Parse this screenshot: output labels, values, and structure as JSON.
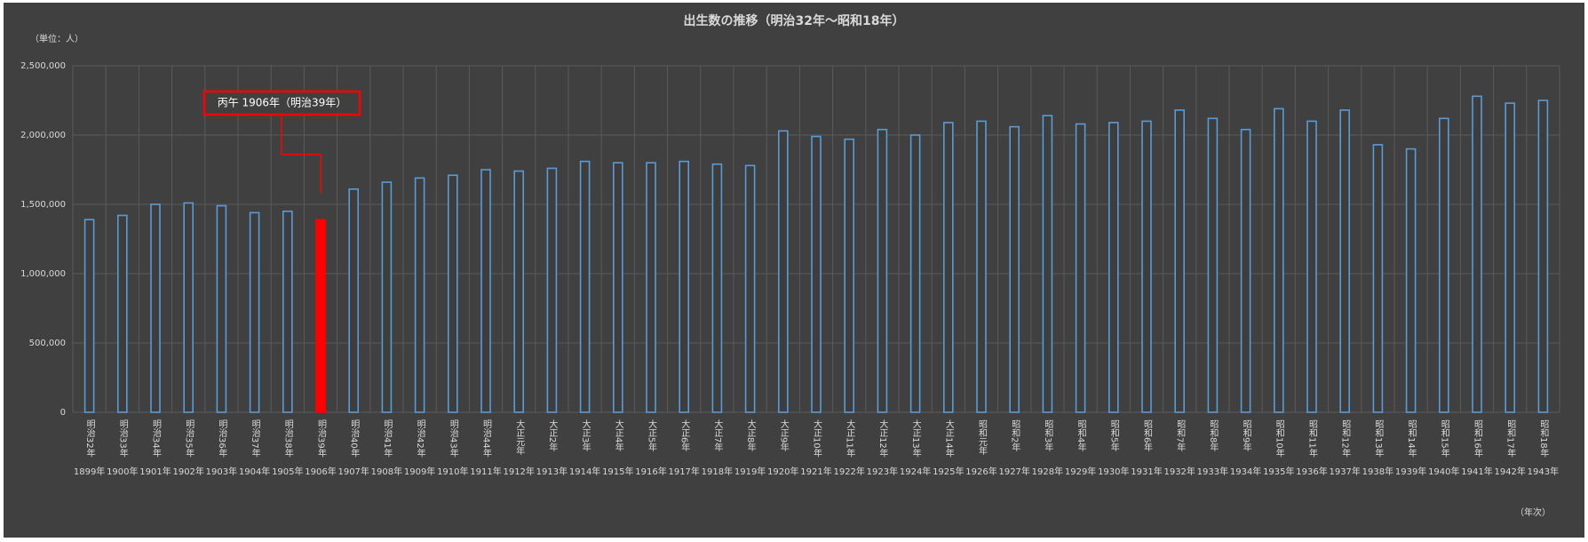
{
  "chart_data": {
    "type": "bar",
    "title": "出生数の推移（明治32年～昭和18年）",
    "y_unit_label": "（単位：人）",
    "x_unit_label": "（年次）",
    "categories": [
      "1899年",
      "1900年",
      "1901年",
      "1902年",
      "1903年",
      "1904年",
      "1905年",
      "1906年",
      "1907年",
      "1908年",
      "1909年",
      "1910年",
      "1911年",
      "1912年",
      "1913年",
      "1914年",
      "1915年",
      "1916年",
      "1917年",
      "1918年",
      "1919年",
      "1920年",
      "1921年",
      "1922年",
      "1923年",
      "1924年",
      "1925年",
      "1926年",
      "1927年",
      "1928年",
      "1929年",
      "1930年",
      "1931年",
      "1932年",
      "1933年",
      "1934年",
      "1935年",
      "1936年",
      "1937年",
      "1938年",
      "1939年",
      "1940年",
      "1941年",
      "1942年",
      "1943年"
    ],
    "era_labels": [
      "明治32年",
      "明治33年",
      "明治34年",
      "明治35年",
      "明治36年",
      "明治37年",
      "明治38年",
      "明治39年",
      "明治40年",
      "明治41年",
      "明治42年",
      "明治43年",
      "明治44年",
      "大正元年",
      "大正2年",
      "大正3年",
      "大正4年",
      "大正5年",
      "大正6年",
      "大正7年",
      "大正8年",
      "大正9年",
      "大正10年",
      "大正11年",
      "大正12年",
      "大正13年",
      "大正14年",
      "昭和元年",
      "昭和2年",
      "昭和3年",
      "昭和4年",
      "昭和5年",
      "昭和6年",
      "昭和7年",
      "昭和8年",
      "昭和9年",
      "昭和10年",
      "昭和11年",
      "昭和12年",
      "昭和13年",
      "昭和14年",
      "昭和15年",
      "昭和16年",
      "昭和17年",
      "昭和18年"
    ],
    "values": [
      1390000,
      1420000,
      1500000,
      1510000,
      1490000,
      1440000,
      1450000,
      1390000,
      1610000,
      1660000,
      1690000,
      1710000,
      1750000,
      1740000,
      1760000,
      1810000,
      1800000,
      1800000,
      1810000,
      1790000,
      1780000,
      2030000,
      1990000,
      1970000,
      2040000,
      2000000,
      2090000,
      2100000,
      2060000,
      2140000,
      2080000,
      2090000,
      2100000,
      2180000,
      2120000,
      2040000,
      2190000,
      2100000,
      2180000,
      1930000,
      1900000,
      2120000,
      2280000,
      2230000,
      2250000
    ],
    "color": "#5b9bd5",
    "highlight": {
      "index": 7,
      "color": "#ff0000"
    },
    "annotation": "丙午 1906年（明治39年）",
    "ylim": [
      0,
      2500000
    ],
    "yticks": [
      0,
      {
        "value": 500000,
        "label": "500,000"
      },
      {
        "value": 1000000,
        "label": "1,000,000"
      },
      {
        "value": 1500000,
        "label": "1,500,000"
      },
      {
        "value": 2000000,
        "label": "2,000,000"
      },
      {
        "value": 2500000,
        "label": "2,500,000"
      }
    ],
    "grid": true
  }
}
